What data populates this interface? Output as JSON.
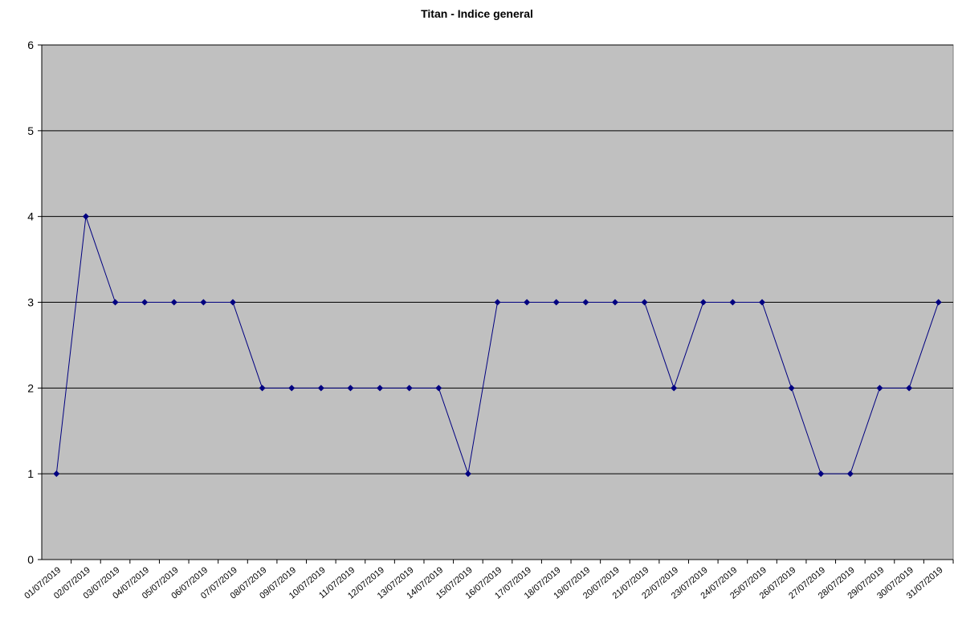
{
  "chart_data": {
    "type": "line",
    "title": "Titan - Indice general",
    "categories": [
      "01/07/2019",
      "02/07/2019",
      "03/07/2019",
      "04/07/2019",
      "05/07/2019",
      "06/07/2019",
      "07/07/2019",
      "08/07/2019",
      "09/07/2019",
      "10/07/2019",
      "11/07/2019",
      "12/07/2019",
      "13/07/2019",
      "14/07/2019",
      "15/07/2019",
      "16/07/2019",
      "17/07/2019",
      "18/07/2019",
      "19/07/2019",
      "20/07/2019",
      "21/07/2019",
      "22/07/2019",
      "23/07/2019",
      "24/07/2019",
      "25/07/2019",
      "26/07/2019",
      "27/07/2019",
      "28/07/2019",
      "29/07/2019",
      "30/07/2019",
      "31/07/2019"
    ],
    "values": [
      1,
      4,
      3,
      3,
      3,
      3,
      3,
      2,
      2,
      2,
      2,
      2,
      2,
      2,
      1,
      3,
      3,
      3,
      3,
      3,
      3,
      2,
      3,
      3,
      3,
      2,
      1,
      1,
      2,
      2,
      3
    ],
    "color": "#000080",
    "ylim": [
      0,
      6
    ],
    "yticks": [
      0,
      1,
      2,
      3,
      4,
      5,
      6
    ],
    "grid": true
  }
}
